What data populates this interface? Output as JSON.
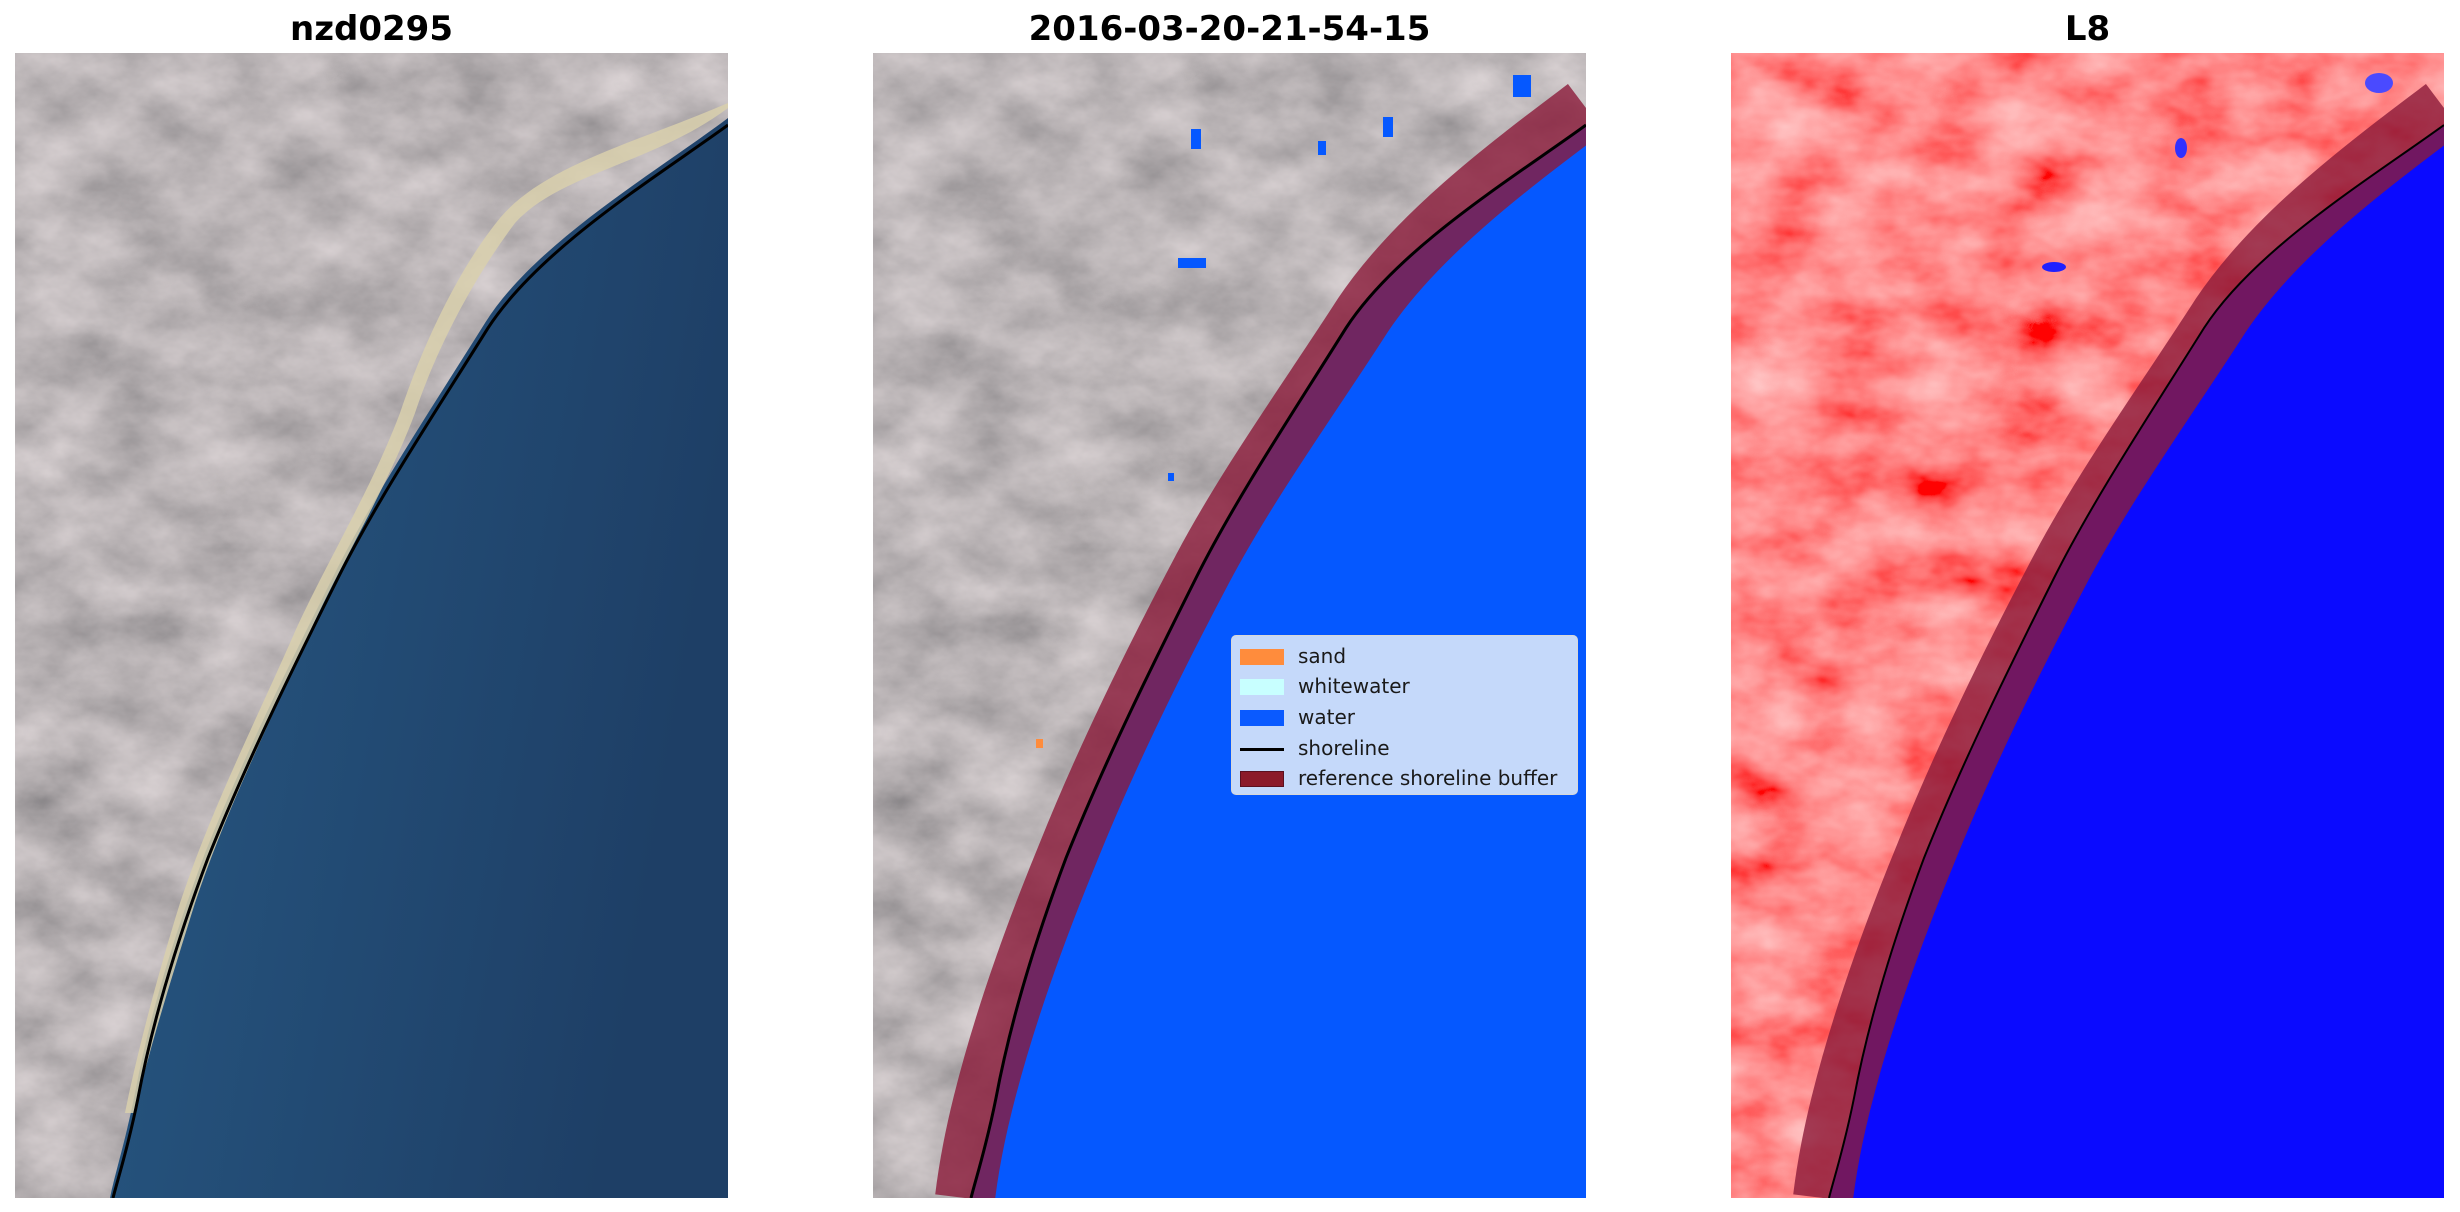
{
  "panels": [
    {
      "title": "nzd0295"
    },
    {
      "title": "2016-03-20-21-54-15"
    },
    {
      "title": "L8"
    }
  ],
  "legend": {
    "items": [
      {
        "label": "sand",
        "color": "#ff8c3c",
        "kind": "patch"
      },
      {
        "label": "whitewater",
        "color": "#c8ffff",
        "kind": "patch"
      },
      {
        "label": "water",
        "color": "#0a5aff",
        "kind": "patch"
      },
      {
        "label": "shoreline",
        "color": "#000000",
        "kind": "line"
      },
      {
        "label": "reference shoreline buffer",
        "color": "#8b1a2a",
        "kind": "patch"
      }
    ]
  },
  "colors": {
    "land": "#7b7576",
    "ocean_deep": "#1f4168",
    "ocean_shallow": "#2e6f9a",
    "sand": "#d8cfac",
    "water_class": "#0558ff",
    "buffer": "#8b1a3a",
    "index_land": "#ff1e1e",
    "index_water": "#0a0aff"
  }
}
